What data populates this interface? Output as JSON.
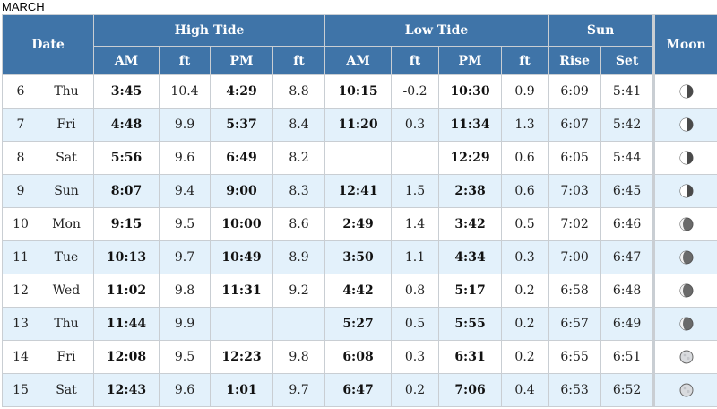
{
  "month": "MARCH",
  "headers": {
    "date": "Date",
    "high_tide": "High Tide",
    "low_tide": "Low Tide",
    "sun": "Sun",
    "moon": "Moon",
    "am": "AM",
    "ft": "ft",
    "pm": "PM",
    "rise": "Rise",
    "set": "Set"
  },
  "rows": [
    {
      "day": "6",
      "dow": "Thu",
      "h_am": "3:45",
      "h_am_ft": "10.4",
      "h_pm": "4:29",
      "h_pm_ft": "8.8",
      "l_am": "10:15",
      "l_am_ft": "-0.2",
      "l_pm": "10:30",
      "l_pm_ft": "0.9",
      "rise": "6:09",
      "set": "5:41",
      "moon": "last-quarter"
    },
    {
      "day": "7",
      "dow": "Fri",
      "h_am": "4:48",
      "h_am_ft": "9.9",
      "h_pm": "5:37",
      "h_pm_ft": "8.4",
      "l_am": "11:20",
      "l_am_ft": "0.3",
      "l_pm": "11:34",
      "l_pm_ft": "1.3",
      "rise": "6:07",
      "set": "5:42",
      "moon": "last-quarter"
    },
    {
      "day": "8",
      "dow": "Sat",
      "h_am": "5:56",
      "h_am_ft": "9.6",
      "h_pm": "6:49",
      "h_pm_ft": "8.2",
      "l_am": "",
      "l_am_ft": "",
      "l_pm": "12:29",
      "l_pm_ft": "0.6",
      "rise": "6:05",
      "set": "5:44",
      "moon": "last-quarter"
    },
    {
      "day": "9",
      "dow": "Sun",
      "h_am": "8:07",
      "h_am_ft": "9.4",
      "h_pm": "9:00",
      "h_pm_ft": "8.3",
      "l_am": "12:41",
      "l_am_ft": "1.5",
      "l_pm": "2:38",
      "l_pm_ft": "0.6",
      "rise": "7:03",
      "set": "6:45",
      "moon": "last-quarter"
    },
    {
      "day": "10",
      "dow": "Mon",
      "h_am": "9:15",
      "h_am_ft": "9.5",
      "h_pm": "10:00",
      "h_pm_ft": "8.6",
      "l_am": "2:49",
      "l_am_ft": "1.4",
      "l_pm": "3:42",
      "l_pm_ft": "0.5",
      "rise": "7:02",
      "set": "6:46",
      "moon": "waning-crescent"
    },
    {
      "day": "11",
      "dow": "Tue",
      "h_am": "10:13",
      "h_am_ft": "9.7",
      "h_pm": "10:49",
      "h_pm_ft": "8.9",
      "l_am": "3:50",
      "l_am_ft": "1.1",
      "l_pm": "4:34",
      "l_pm_ft": "0.3",
      "rise": "7:00",
      "set": "6:47",
      "moon": "waning-crescent"
    },
    {
      "day": "12",
      "dow": "Wed",
      "h_am": "11:02",
      "h_am_ft": "9.8",
      "h_pm": "11:31",
      "h_pm_ft": "9.2",
      "l_am": "4:42",
      "l_am_ft": "0.8",
      "l_pm": "5:17",
      "l_pm_ft": "0.2",
      "rise": "6:58",
      "set": "6:48",
      "moon": "waning-crescent"
    },
    {
      "day": "13",
      "dow": "Thu",
      "h_am": "11:44",
      "h_am_ft": "9.9",
      "h_pm": "",
      "h_pm_ft": "",
      "l_am": "5:27",
      "l_am_ft": "0.5",
      "l_pm": "5:55",
      "l_pm_ft": "0.2",
      "rise": "6:57",
      "set": "6:49",
      "moon": "waning-crescent"
    },
    {
      "day": "14",
      "dow": "Fri",
      "h_am": "12:08",
      "h_am_ft": "9.5",
      "h_pm": "12:23",
      "h_pm_ft": "9.8",
      "l_am": "6:08",
      "l_am_ft": "0.3",
      "l_pm": "6:31",
      "l_pm_ft": "0.2",
      "rise": "6:55",
      "set": "6:51",
      "moon": "new-moon"
    },
    {
      "day": "15",
      "dow": "Sat",
      "h_am": "12:43",
      "h_am_ft": "9.6",
      "h_pm": "1:01",
      "h_pm_ft": "9.7",
      "l_am": "6:47",
      "l_am_ft": "0.2",
      "l_pm": "7:06",
      "l_pm_ft": "0.4",
      "rise": "6:53",
      "set": "6:52",
      "moon": "new-moon"
    }
  ]
}
